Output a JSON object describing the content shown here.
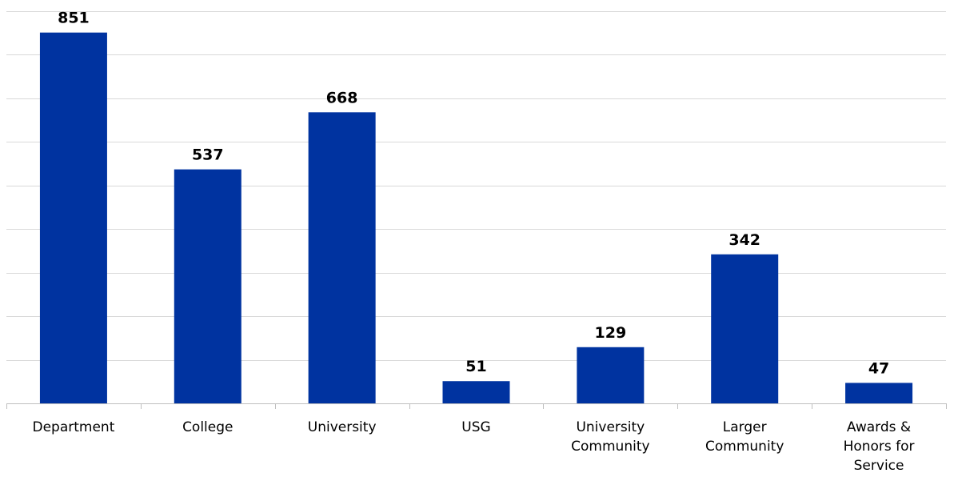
{
  "chart_data": {
    "type": "bar",
    "categories": [
      "Department",
      "College",
      "University",
      "USG",
      "University Community",
      "Larger Community",
      "Awards & Honors for Service"
    ],
    "category_lines": [
      [
        "Department"
      ],
      [
        "College"
      ],
      [
        "University"
      ],
      [
        "USG"
      ],
      [
        "University",
        "Community"
      ],
      [
        "Larger",
        "Community"
      ],
      [
        "Awards &",
        "Honors for",
        "Service"
      ]
    ],
    "values": [
      851,
      537,
      668,
      51,
      129,
      342,
      47
    ],
    "data_labels": [
      "851",
      "537",
      "668",
      "51",
      "129",
      "342",
      "47"
    ],
    "title": "",
    "xlabel": "",
    "ylabel": "",
    "ylim": [
      0,
      900
    ],
    "y_grid_step": 100,
    "y_tick_labels_shown": false,
    "grid": true,
    "legend": "none",
    "bar_color": "#0033A0"
  }
}
